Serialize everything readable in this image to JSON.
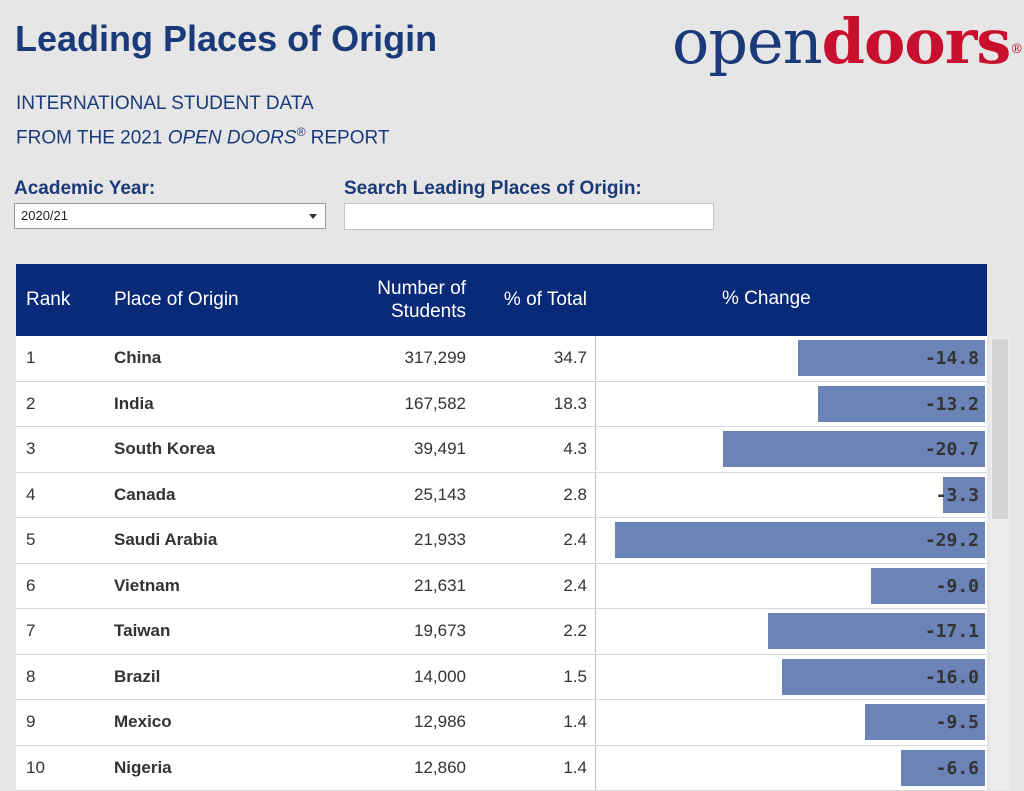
{
  "title": "Leading Places of Origin",
  "logo": {
    "part1": "open",
    "part2": "doors",
    "mark": "®"
  },
  "subtitle": {
    "line1": "INTERNATIONAL STUDENT DATA",
    "line2_prefix": "FROM THE 2021 ",
    "line2_italic": "OPEN DOORS",
    "line2_mark": "®",
    "line2_suffix": " REPORT"
  },
  "filters": {
    "year_label": "Academic Year:",
    "year_value": "2020/21",
    "search_label": "Search Leading Places of Origin:",
    "search_value": ""
  },
  "table": {
    "headers": {
      "rank": "Rank",
      "place": "Place of Origin",
      "students_line1": "Number of",
      "students_line2": "Students",
      "pct": "% of Total",
      "change": "% Change"
    },
    "rows": [
      {
        "rank": "1",
        "place": "China",
        "students": "317,299",
        "pct": "34.7",
        "change": "-14.8",
        "change_value": -14.8
      },
      {
        "rank": "2",
        "place": "India",
        "students": "167,582",
        "pct": "18.3",
        "change": "-13.2",
        "change_value": -13.2
      },
      {
        "rank": "3",
        "place": "South Korea",
        "students": "39,491",
        "pct": "4.3",
        "change": "-20.7",
        "change_value": -20.7
      },
      {
        "rank": "4",
        "place": "Canada",
        "students": "25,143",
        "pct": "2.8",
        "change": "-3.3",
        "change_value": -3.3
      },
      {
        "rank": "5",
        "place": "Saudi Arabia",
        "students": "21,933",
        "pct": "2.4",
        "change": "-29.2",
        "change_value": -29.2
      },
      {
        "rank": "6",
        "place": "Vietnam",
        "students": "21,631",
        "pct": "2.4",
        "change": "-9.0",
        "change_value": -9.0
      },
      {
        "rank": "7",
        "place": "Taiwan",
        "students": "19,673",
        "pct": "2.2",
        "change": "-17.1",
        "change_value": -17.1
      },
      {
        "rank": "8",
        "place": "Brazil",
        "students": "14,000",
        "pct": "1.5",
        "change": "-16.0",
        "change_value": -16.0
      },
      {
        "rank": "9",
        "place": "Mexico",
        "students": "12,986",
        "pct": "1.4",
        "change": "-9.5",
        "change_value": -9.5
      },
      {
        "rank": "10",
        "place": "Nigeria",
        "students": "12,860",
        "pct": "1.4",
        "change": "-6.6",
        "change_value": -6.6
      }
    ]
  },
  "colors": {
    "brand_blue": "#1b3a7a",
    "brand_red": "#c8102e",
    "header_bg": "#092a78",
    "bar": "#6b83b6"
  },
  "icons": {
    "dropdown": "chevron-down-icon"
  }
}
